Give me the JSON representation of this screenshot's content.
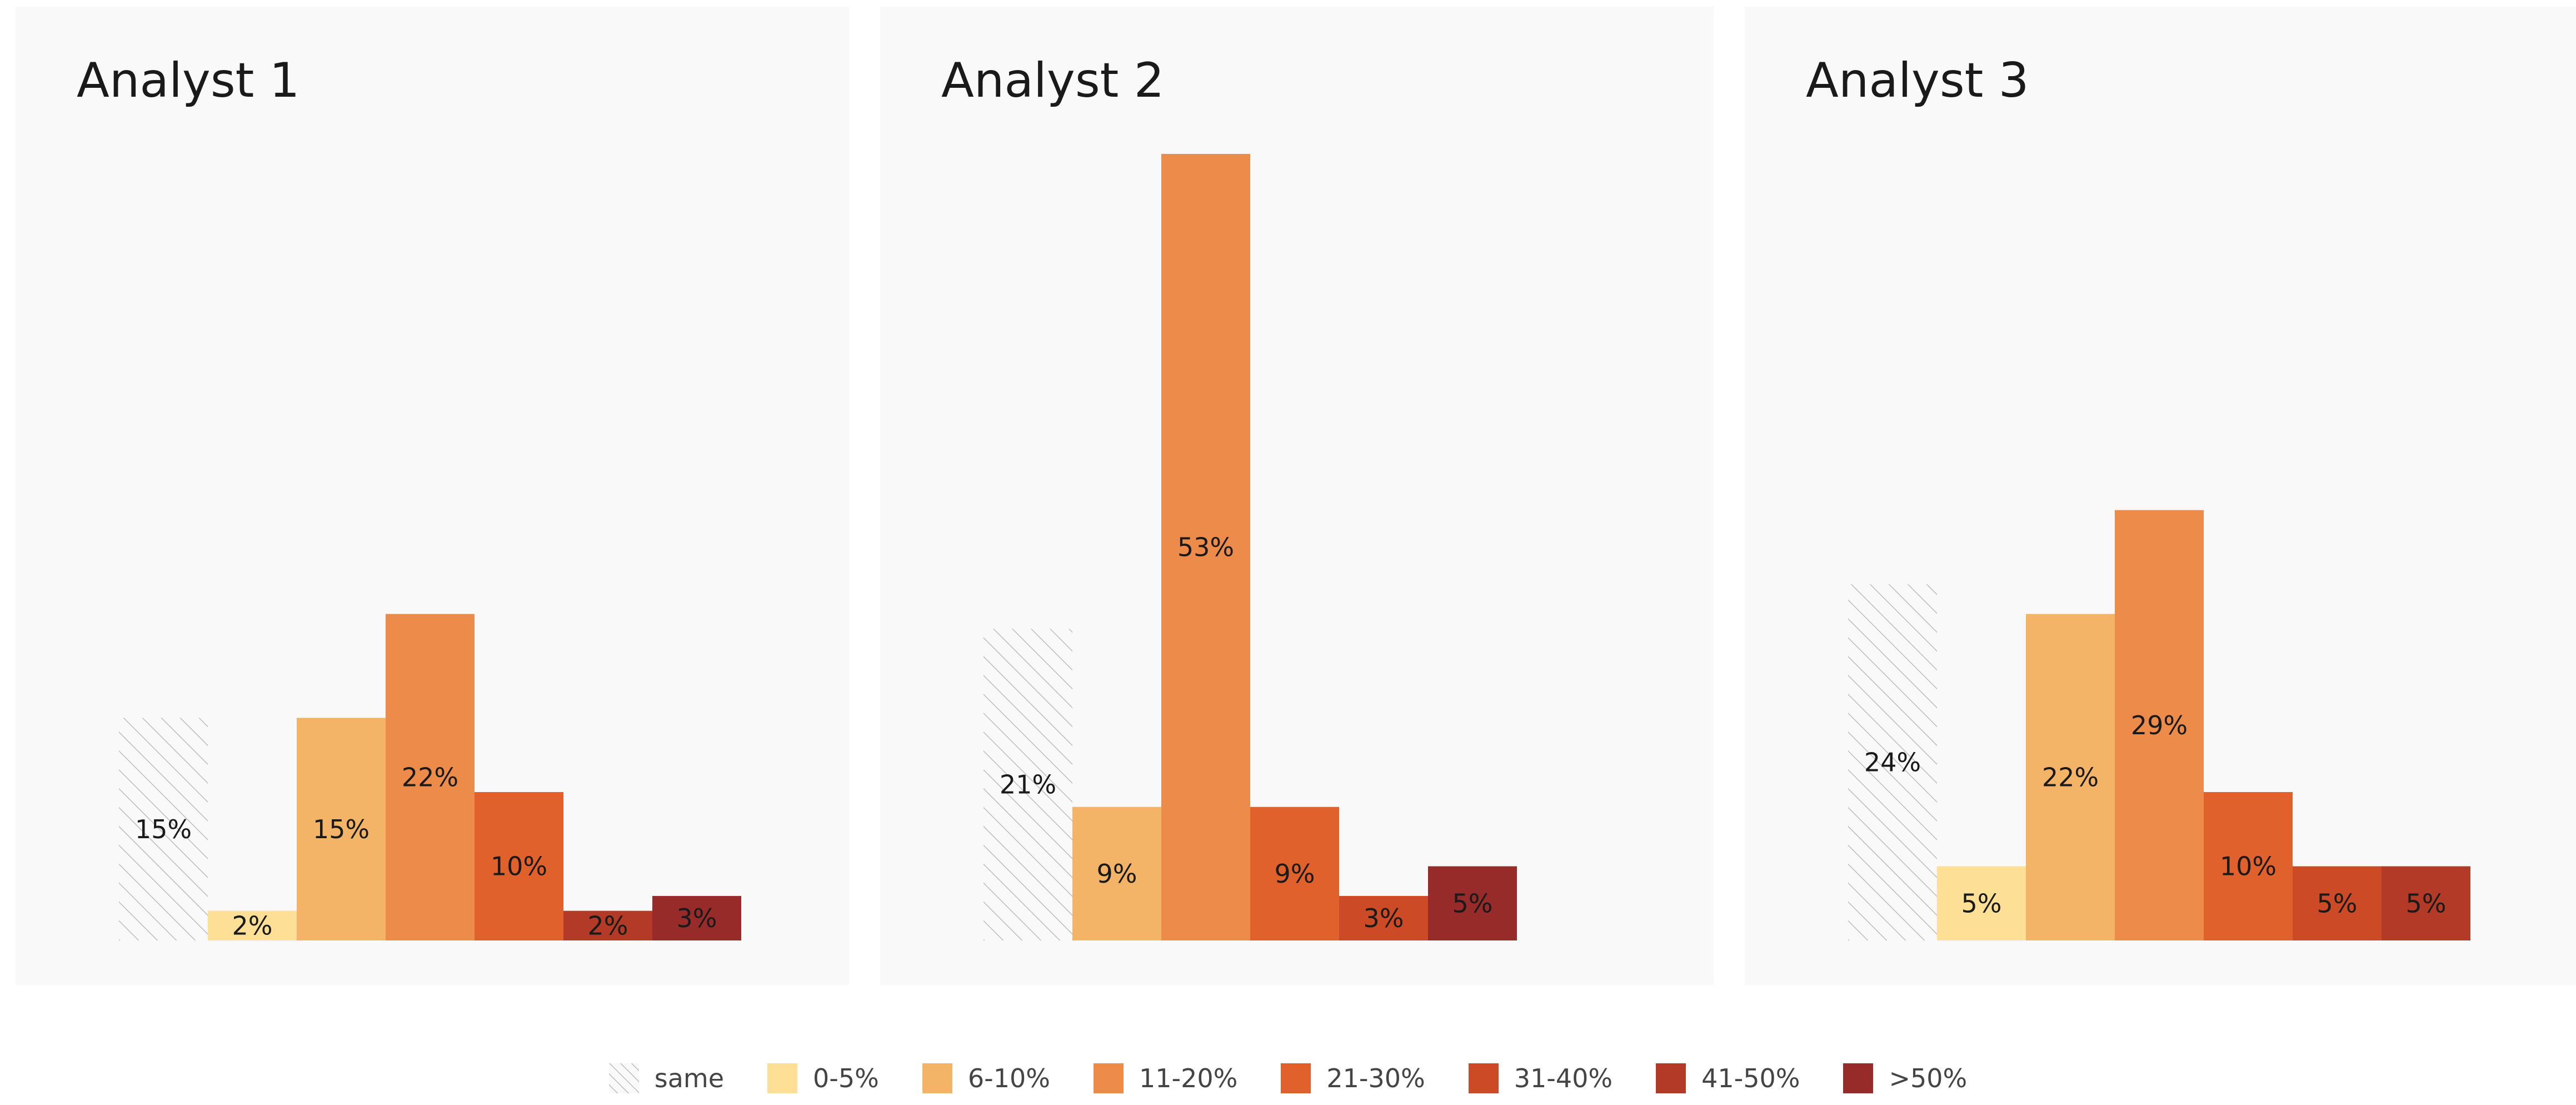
{
  "chart_data": {
    "type": "bar",
    "categories": [
      "same",
      "0-5%",
      "6-10%",
      "11-20%",
      "21-30%",
      "31-40%",
      "41-50%",
      ">50%"
    ],
    "category_colors": [
      "hatch",
      "#fddf95",
      "#f4b467",
      "#ed8c4a",
      "#e0612b",
      "#cc4b26",
      "#b33a26",
      "#962b29"
    ],
    "value_format": "percent",
    "ylim": [
      0,
      55
    ],
    "grid": false,
    "legend_position": "bottom-center",
    "panels": [
      {
        "title": "Analyst 1",
        "series": [
          {
            "category": "same",
            "value": 15
          },
          {
            "category": "0-5%",
            "value": 2
          },
          {
            "category": "6-10%",
            "value": 15
          },
          {
            "category": "11-20%",
            "value": 22
          },
          {
            "category": "21-30%",
            "value": 10
          },
          {
            "category": "41-50%",
            "value": 2
          },
          {
            "category": ">50%",
            "value": 3
          }
        ]
      },
      {
        "title": "Analyst 2",
        "series": [
          {
            "category": "same",
            "value": 21
          },
          {
            "category": "6-10%",
            "value": 9
          },
          {
            "category": "11-20%",
            "value": 53
          },
          {
            "category": "21-30%",
            "value": 9
          },
          {
            "category": "31-40%",
            "value": 3
          },
          {
            "category": ">50%",
            "value": 5
          }
        ]
      },
      {
        "title": "Analyst 3",
        "series": [
          {
            "category": "same",
            "value": 24
          },
          {
            "category": "0-5%",
            "value": 5
          },
          {
            "category": "6-10%",
            "value": 22
          },
          {
            "category": "11-20%",
            "value": 29
          },
          {
            "category": "21-30%",
            "value": 10
          },
          {
            "category": "31-40%",
            "value": 5
          },
          {
            "category": "41-50%",
            "value": 5
          }
        ]
      }
    ]
  }
}
